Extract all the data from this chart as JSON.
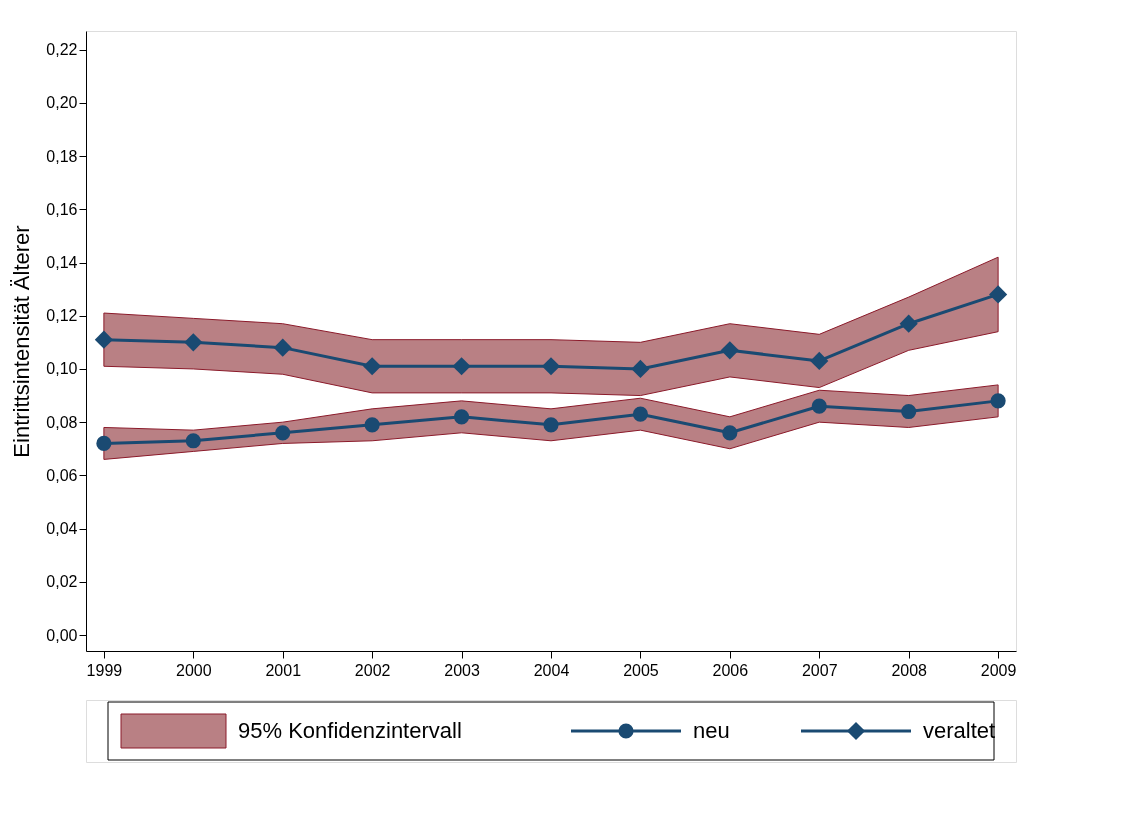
{
  "chart_data": {
    "type": "line",
    "ylabel": "Eintrittsintensität Älterer",
    "x": [
      1999,
      2000,
      2001,
      2002,
      2003,
      2004,
      2005,
      2006,
      2007,
      2008,
      2009
    ],
    "series": [
      {
        "name": "neu",
        "color": "#1a4a72",
        "marker": "circle",
        "values": [
          0.072,
          0.073,
          0.076,
          0.079,
          0.082,
          0.079,
          0.083,
          0.076,
          0.086,
          0.084,
          0.088
        ],
        "lower": [
          0.066,
          0.069,
          0.072,
          0.073,
          0.076,
          0.073,
          0.077,
          0.07,
          0.08,
          0.078,
          0.082
        ],
        "upper": [
          0.078,
          0.077,
          0.08,
          0.085,
          0.088,
          0.085,
          0.089,
          0.082,
          0.092,
          0.09,
          0.094
        ]
      },
      {
        "name": "veraltet",
        "color": "#1a4a72",
        "marker": "diamond",
        "values": [
          0.111,
          0.11,
          0.108,
          0.101,
          0.101,
          0.101,
          0.1,
          0.107,
          0.103,
          0.117,
          0.128
        ],
        "lower": [
          0.101,
          0.1,
          0.098,
          0.091,
          0.091,
          0.091,
          0.09,
          0.097,
          0.093,
          0.107,
          0.114
        ],
        "upper": [
          0.121,
          0.119,
          0.117,
          0.111,
          0.111,
          0.111,
          0.11,
          0.117,
          0.113,
          0.127,
          0.142
        ]
      }
    ],
    "annotations": [
      "95% Konfidenzintervall"
    ],
    "xlim": [
      1998.8,
      2009.2
    ],
    "xticks": [
      1999,
      2000,
      2001,
      2002,
      2003,
      2004,
      2005,
      2006,
      2007,
      2008,
      2009
    ],
    "ylim": [
      -0.006,
      0.227
    ],
    "yticks": [
      {
        "value": 0.0,
        "label": "0,00"
      },
      {
        "value": 0.02,
        "label": "0,02"
      },
      {
        "value": 0.04,
        "label": "0,04"
      },
      {
        "value": 0.06,
        "label": "0,06"
      },
      {
        "value": 0.08,
        "label": "0,08"
      },
      {
        "value": 0.1,
        "label": "0,10"
      },
      {
        "value": 0.12,
        "label": "0,12"
      },
      {
        "value": 0.14,
        "label": "0,14"
      },
      {
        "value": 0.16,
        "label": "0,16"
      },
      {
        "value": 0.18,
        "label": "0,18"
      },
      {
        "value": 0.2,
        "label": "0,20"
      },
      {
        "value": 0.22,
        "label": "0,22"
      }
    ],
    "grid": false,
    "legend": "bottom",
    "line_style": "solid"
  }
}
